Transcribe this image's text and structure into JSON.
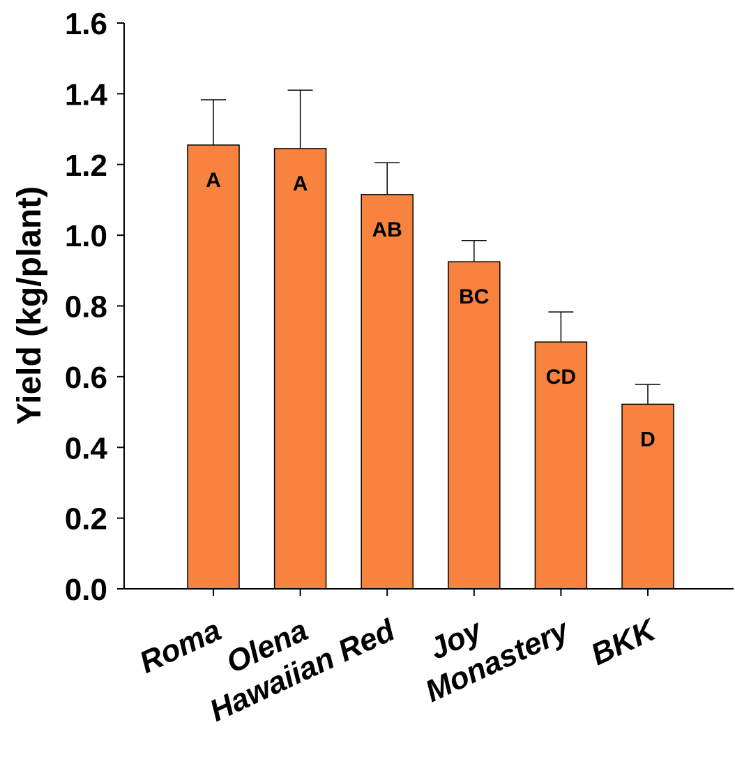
{
  "chart_data": {
    "type": "bar",
    "title": "",
    "xlabel": "",
    "ylabel": "Yield (kg/plant)",
    "ylim": [
      0,
      1.6
    ],
    "yticks": [
      "0.0",
      "0.2",
      "0.4",
      "0.6",
      "0.8",
      "1.0",
      "1.2",
      "1.4",
      "1.6"
    ],
    "grid": false,
    "legend": "none",
    "bar_color": "#f7833f",
    "categories": [
      "Roma",
      "Olena",
      "Hawaiian Red",
      "Joy",
      "Monastery",
      "BKK"
    ],
    "values": [
      1.255,
      1.245,
      1.115,
      0.925,
      0.698,
      0.522
    ],
    "errors": [
      0.128,
      0.165,
      0.09,
      0.06,
      0.085,
      0.056
    ],
    "significance_letters": [
      "A",
      "A",
      "AB",
      "BC",
      "CD",
      "D"
    ]
  }
}
